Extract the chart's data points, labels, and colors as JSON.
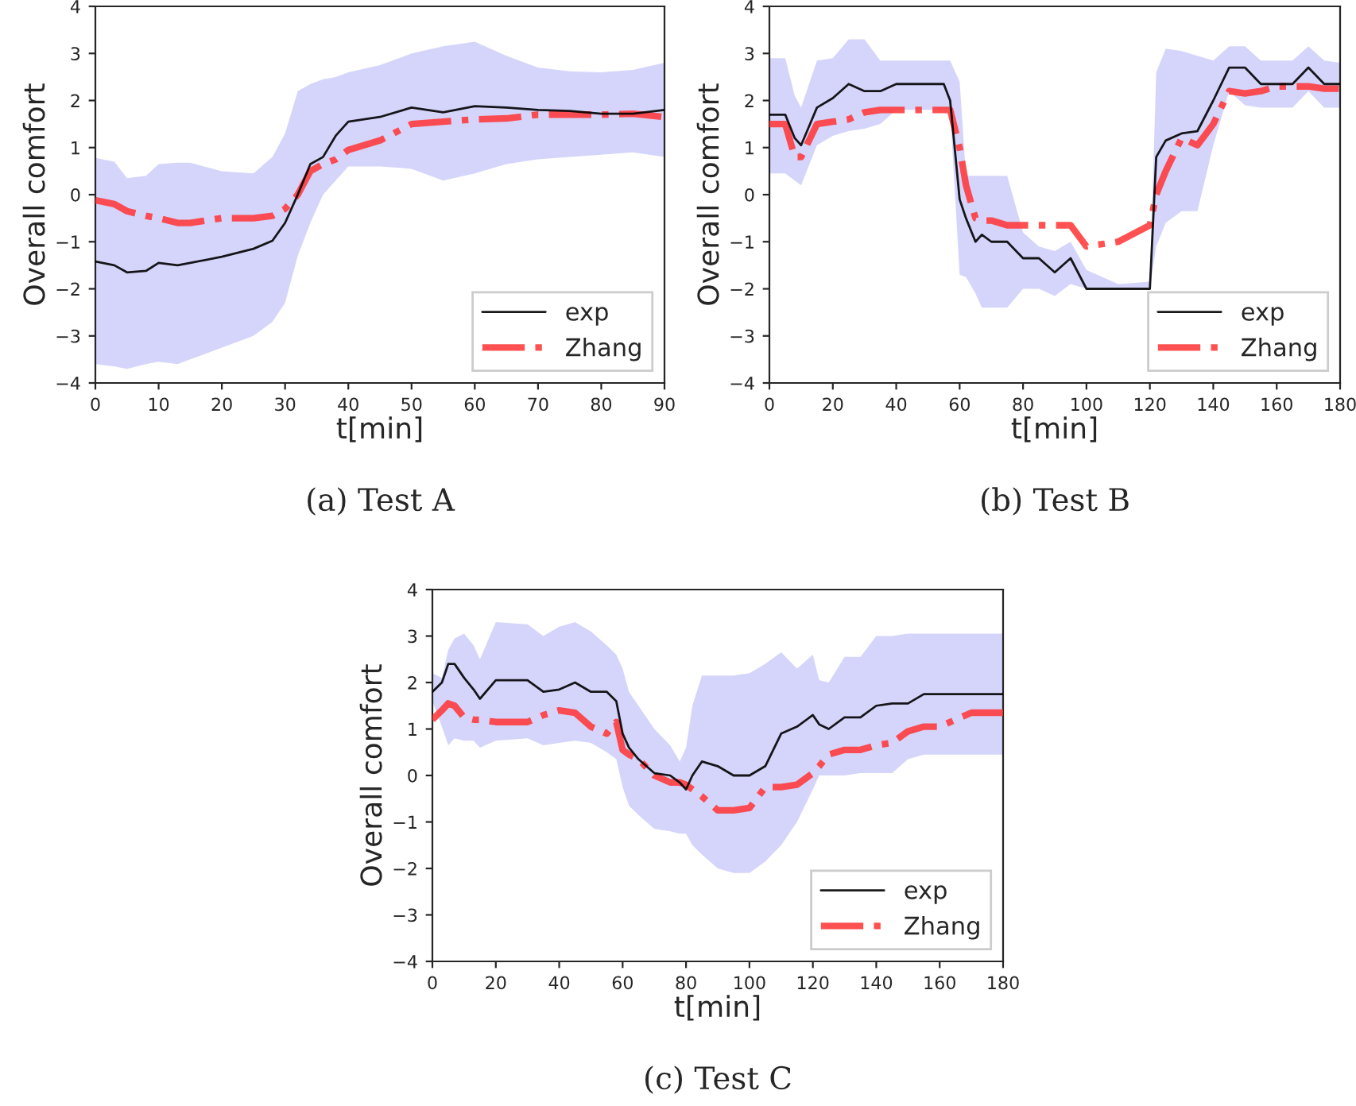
{
  "chart_data": [
    {
      "type": "line",
      "title": "(a) Test A",
      "xlabel": "t[min]",
      "ylabel": "Overall comfort",
      "xlim": [
        0,
        90
      ],
      "xticks": [
        0,
        10,
        20,
        30,
        40,
        50,
        60,
        70,
        80,
        90
      ],
      "ylim": [
        -4,
        4
      ],
      "yticks": [
        -4,
        -3,
        -2,
        -1,
        0,
        1,
        2,
        3,
        4
      ],
      "legend": "bottom right",
      "grid": false,
      "x": [
        0,
        3,
        5,
        8,
        10,
        13,
        15,
        20,
        25,
        28,
        30,
        32,
        34,
        36,
        38,
        40,
        45,
        50,
        55,
        60,
        65,
        70,
        75,
        80,
        85,
        90
      ],
      "series": [
        {
          "name": "exp",
          "color": "#000000",
          "line_style": "solid",
          "values": [
            -1.42,
            -1.5,
            -1.65,
            -1.62,
            -1.45,
            -1.5,
            -1.45,
            -1.32,
            -1.15,
            -0.98,
            -0.6,
            0.0,
            0.65,
            0.8,
            1.25,
            1.55,
            1.65,
            1.85,
            1.75,
            1.88,
            1.85,
            1.8,
            1.78,
            1.72,
            1.72,
            1.8
          ],
          "upper": [
            0.78,
            0.7,
            0.35,
            0.4,
            0.65,
            0.68,
            0.68,
            0.5,
            0.45,
            0.8,
            1.3,
            2.2,
            2.35,
            2.45,
            2.5,
            2.6,
            2.75,
            3.0,
            3.15,
            3.25,
            2.95,
            2.7,
            2.62,
            2.6,
            2.65,
            2.8
          ],
          "lower": [
            -3.6,
            -3.65,
            -3.7,
            -3.6,
            -3.55,
            -3.6,
            -3.5,
            -3.25,
            -3.0,
            -2.7,
            -2.3,
            -1.3,
            -0.6,
            0.0,
            0.3,
            0.6,
            0.6,
            0.55,
            0.3,
            0.45,
            0.65,
            0.75,
            0.8,
            0.85,
            0.9,
            0.8
          ]
        },
        {
          "name": "Zhang",
          "color": "#ff3333",
          "line_style": "dashdot",
          "values": [
            -0.12,
            -0.2,
            -0.35,
            -0.45,
            -0.5,
            -0.6,
            -0.6,
            -0.5,
            -0.5,
            -0.45,
            -0.3,
            0.0,
            0.5,
            0.65,
            0.75,
            0.95,
            1.15,
            1.5,
            1.55,
            1.6,
            1.62,
            1.7,
            1.7,
            1.7,
            1.72,
            1.65
          ]
        }
      ]
    },
    {
      "type": "line",
      "title": "(b) Test B",
      "xlabel": "t[min]",
      "ylabel": "Overall comfort",
      "xlim": [
        0,
        180
      ],
      "xticks": [
        0,
        20,
        40,
        60,
        80,
        100,
        120,
        140,
        160,
        180
      ],
      "ylim": [
        -4,
        4
      ],
      "yticks": [
        -4,
        -3,
        -2,
        -1,
        0,
        1,
        2,
        3,
        4
      ],
      "legend": "bottom right",
      "grid": false,
      "x": [
        0,
        5,
        8,
        10,
        15,
        20,
        25,
        30,
        35,
        40,
        55,
        57,
        60,
        62,
        65,
        67,
        70,
        75,
        80,
        85,
        90,
        95,
        100,
        110,
        120,
        122,
        125,
        130,
        135,
        140,
        145,
        150,
        155,
        160,
        165,
        170,
        175,
        180
      ],
      "series": [
        {
          "name": "exp",
          "color": "#000000",
          "line_style": "solid",
          "values": [
            1.7,
            1.7,
            1.2,
            1.05,
            1.85,
            2.05,
            2.35,
            2.2,
            2.2,
            2.35,
            2.35,
            2.0,
            -0.1,
            -0.5,
            -1.0,
            -0.85,
            -1.0,
            -1.0,
            -1.35,
            -1.35,
            -1.65,
            -1.35,
            -2.0,
            -2.0,
            -2.0,
            0.8,
            1.15,
            1.3,
            1.35,
            2.0,
            2.7,
            2.7,
            2.35,
            2.35,
            2.35,
            2.7,
            2.35,
            2.35
          ],
          "upper": [
            2.9,
            2.9,
            2.1,
            1.85,
            2.85,
            2.9,
            3.3,
            3.3,
            2.85,
            2.85,
            2.85,
            2.85,
            2.4,
            0.4,
            0.4,
            0.4,
            0.4,
            0.4,
            -0.8,
            -1.1,
            -1.2,
            -1.0,
            -1.6,
            -1.9,
            -1.85,
            2.6,
            3.1,
            3.05,
            2.95,
            2.85,
            3.15,
            3.15,
            2.85,
            2.85,
            2.85,
            3.15,
            2.85,
            2.8
          ],
          "lower": [
            0.45,
            0.45,
            0.3,
            0.2,
            1.05,
            1.25,
            1.35,
            1.4,
            1.5,
            1.8,
            1.8,
            1.8,
            -1.7,
            -1.75,
            -2.1,
            -2.4,
            -2.4,
            -2.4,
            -2.0,
            -2.0,
            -2.15,
            -1.9,
            -2.0,
            -2.0,
            -2.0,
            -1.1,
            -0.6,
            -0.35,
            -0.35,
            1.05,
            2.2,
            1.9,
            1.85,
            1.85,
            1.85,
            2.2,
            1.85,
            1.85
          ]
        },
        {
          "name": "Zhang",
          "color": "#ff3333",
          "line_style": "dashdot",
          "values": [
            1.5,
            1.5,
            0.8,
            0.8,
            1.5,
            1.55,
            1.6,
            1.75,
            1.8,
            1.8,
            1.8,
            1.8,
            1.0,
            0.2,
            -0.5,
            -0.55,
            -0.55,
            -0.65,
            -0.65,
            -0.65,
            -0.65,
            -0.65,
            -1.1,
            -1.0,
            -0.65,
            0.0,
            0.5,
            1.2,
            1.05,
            1.5,
            2.2,
            2.15,
            2.2,
            2.3,
            2.3,
            2.3,
            2.25,
            2.25
          ]
        }
      ]
    },
    {
      "type": "line",
      "title": "(c) Test C",
      "xlabel": "t[min]",
      "ylabel": "Overall comfort",
      "xlim": [
        0,
        180
      ],
      "xticks": [
        0,
        20,
        40,
        60,
        80,
        100,
        120,
        140,
        160,
        180
      ],
      "ylim": [
        -4,
        4
      ],
      "yticks": [
        -4,
        -3,
        -2,
        -1,
        0,
        1,
        2,
        3,
        4
      ],
      "legend": "bottom right",
      "grid": false,
      "x": [
        0,
        3,
        5,
        7,
        10,
        13,
        15,
        20,
        30,
        35,
        40,
        45,
        50,
        55,
        58,
        60,
        62,
        65,
        70,
        75,
        78,
        80,
        82,
        85,
        90,
        95,
        100,
        105,
        110,
        115,
        120,
        122,
        125,
        130,
        135,
        140,
        145,
        150,
        155,
        160,
        170,
        180
      ],
      "series": [
        {
          "name": "exp",
          "color": "#000000",
          "line_style": "solid",
          "values": [
            1.8,
            2.0,
            2.4,
            2.4,
            2.1,
            1.85,
            1.65,
            2.05,
            2.05,
            1.8,
            1.85,
            2.0,
            1.8,
            1.8,
            1.6,
            0.9,
            0.6,
            0.35,
            0.05,
            0.0,
            -0.15,
            -0.3,
            0.0,
            0.3,
            0.2,
            0.0,
            0.0,
            0.2,
            0.9,
            1.05,
            1.3,
            1.1,
            1.0,
            1.25,
            1.25,
            1.5,
            1.55,
            1.55,
            1.75,
            1.75,
            1.75,
            1.75
          ],
          "upper": [
            2.2,
            2.1,
            2.7,
            2.95,
            3.05,
            2.8,
            2.5,
            3.3,
            3.25,
            3.0,
            3.2,
            3.3,
            3.1,
            2.8,
            2.6,
            2.3,
            1.8,
            1.5,
            1.0,
            0.65,
            0.3,
            0.6,
            1.5,
            2.15,
            2.15,
            2.15,
            2.2,
            2.4,
            2.65,
            2.3,
            2.6,
            2.05,
            2.0,
            2.55,
            2.55,
            3.0,
            3.0,
            3.05,
            3.05,
            3.05,
            3.05,
            3.05
          ],
          "lower": [
            1.6,
            1.05,
            0.65,
            0.8,
            0.75,
            0.75,
            0.6,
            0.75,
            0.8,
            0.65,
            0.7,
            0.75,
            0.7,
            0.5,
            0.35,
            -0.25,
            -0.65,
            -0.85,
            -1.15,
            -1.2,
            -1.25,
            -1.25,
            -1.5,
            -1.7,
            -2.0,
            -2.1,
            -2.1,
            -1.85,
            -1.5,
            -1.0,
            -0.3,
            0.0,
            0.0,
            0.0,
            0.05,
            0.05,
            0.05,
            0.35,
            0.45,
            0.45,
            0.45,
            0.45
          ]
        },
        {
          "name": "Zhang",
          "color": "#ff3333",
          "line_style": "dashdot",
          "values": [
            1.2,
            1.4,
            1.55,
            1.5,
            1.25,
            1.2,
            1.2,
            1.15,
            1.15,
            1.3,
            1.4,
            1.35,
            1.05,
            0.9,
            1.15,
            0.55,
            0.45,
            0.35,
            0.0,
            -0.15,
            -0.15,
            -0.2,
            -0.3,
            -0.45,
            -0.75,
            -0.75,
            -0.7,
            -0.25,
            -0.25,
            -0.2,
            0.05,
            0.2,
            0.45,
            0.55,
            0.55,
            0.65,
            0.7,
            0.95,
            1.05,
            1.05,
            1.35,
            1.35
          ]
        }
      ]
    }
  ]
}
